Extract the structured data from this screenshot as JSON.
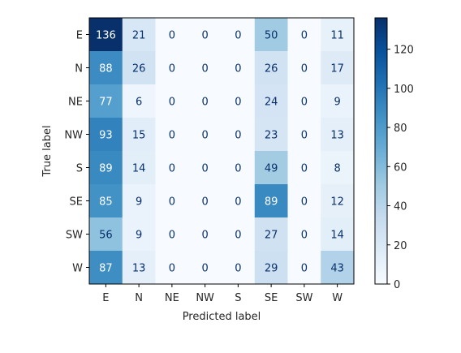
{
  "chart_data": {
    "type": "heatmap",
    "title": "",
    "xlabel": "Predicted label",
    "ylabel": "True label",
    "x_categories": [
      "E",
      "N",
      "NE",
      "NW",
      "S",
      "SE",
      "SW",
      "W"
    ],
    "y_categories": [
      "E",
      "N",
      "NE",
      "NW",
      "S",
      "SE",
      "SW",
      "W"
    ],
    "matrix": [
      [
        136,
        21,
        0,
        0,
        0,
        50,
        0,
        11
      ],
      [
        88,
        26,
        0,
        0,
        0,
        26,
        0,
        17
      ],
      [
        77,
        6,
        0,
        0,
        0,
        24,
        0,
        9
      ],
      [
        93,
        15,
        0,
        0,
        0,
        23,
        0,
        13
      ],
      [
        89,
        14,
        0,
        0,
        0,
        49,
        0,
        8
      ],
      [
        85,
        9,
        0,
        0,
        0,
        89,
        0,
        12
      ],
      [
        56,
        9,
        0,
        0,
        0,
        27,
        0,
        14
      ],
      [
        87,
        13,
        0,
        0,
        0,
        29,
        0,
        43
      ]
    ],
    "colormap": "Blues",
    "vmin": 0,
    "vmax": 136,
    "colorbar_ticks": [
      0,
      20,
      40,
      60,
      80,
      100,
      120
    ],
    "grid": false
  }
}
